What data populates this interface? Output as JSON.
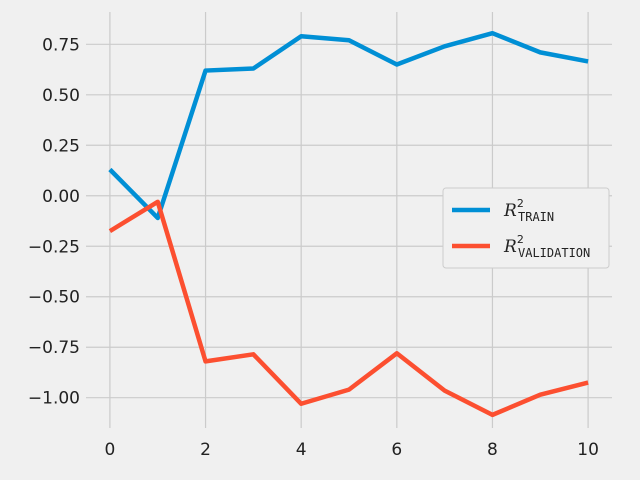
{
  "chart_data": {
    "type": "line",
    "title": "",
    "xlabel": "",
    "ylabel": "",
    "x": [
      0,
      1,
      2,
      3,
      4,
      5,
      6,
      7,
      8,
      9,
      10
    ],
    "xlim": [
      -0.5,
      10.5
    ],
    "ylim": [
      -1.15,
      0.91
    ],
    "xticks": [
      0,
      2,
      4,
      6,
      8,
      10
    ],
    "yticks": [
      -1.0,
      -0.75,
      -0.5,
      -0.25,
      0.0,
      0.25,
      0.5,
      0.75
    ],
    "ytick_labels": [
      "−1.00",
      "−0.75",
      "−0.50",
      "−0.25",
      "0.00",
      "0.25",
      "0.50",
      "0.75"
    ],
    "xtick_labels": [
      "0",
      "2",
      "4",
      "6",
      "8",
      "10"
    ],
    "grid": true,
    "legend_position": "center-right",
    "series": [
      {
        "name": "R2_TRAIN",
        "label_main": "R",
        "label_sup": "2",
        "label_sub": "TRAIN",
        "color": "#008fd5",
        "values": [
          0.13,
          -0.11,
          0.62,
          0.63,
          0.79,
          0.77,
          0.65,
          0.74,
          0.805,
          0.71,
          0.665
        ]
      },
      {
        "name": "R2_VALIDATION",
        "label_main": "R",
        "label_sup": "2",
        "label_sub": "VALIDATION",
        "color": "#fc4f30",
        "values": [
          -0.175,
          -0.03,
          -0.82,
          -0.785,
          -1.03,
          -0.96,
          -0.78,
          -0.965,
          -1.085,
          -0.985,
          -0.925
        ]
      }
    ]
  }
}
